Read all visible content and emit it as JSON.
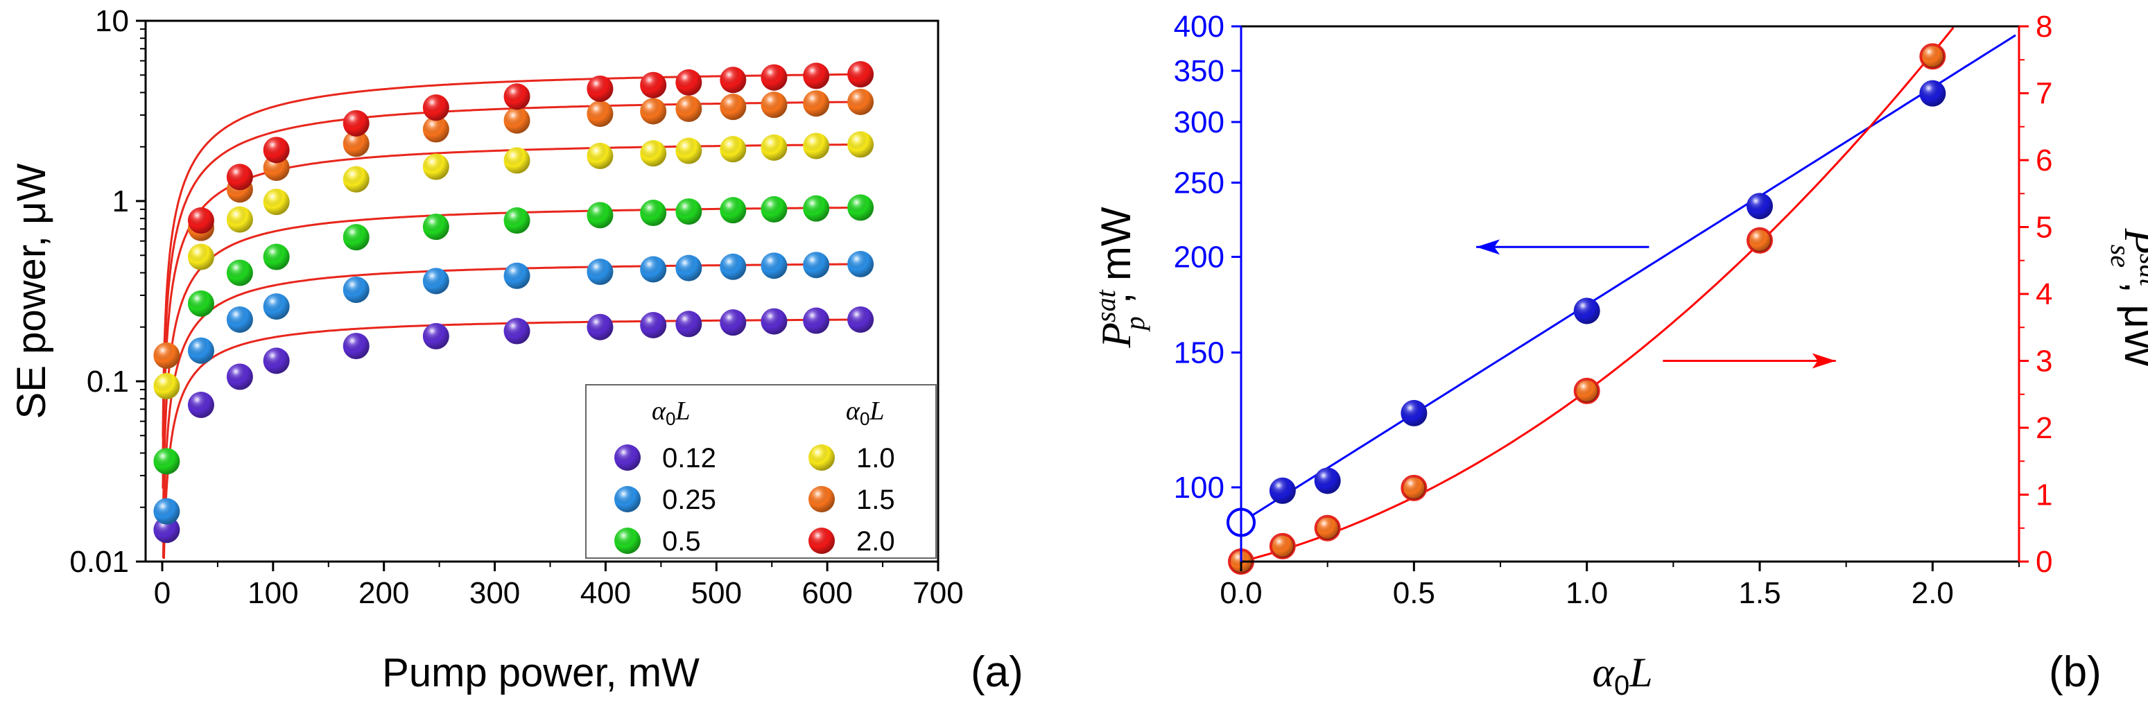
{
  "figure": {
    "colors": {
      "axis": "#000000",
      "blue": "#0000ff",
      "red": "#ff0000",
      "fit_red": "#e8261c",
      "open_marker_fill": "#ffffff"
    },
    "panel_a": {
      "type": "scatter",
      "label": "(a)",
      "xlabel": "Pump power, mW",
      "ylabel": "SE power, μW",
      "xlim": [
        -15,
        700
      ],
      "ylim": [
        0.01,
        10
      ],
      "yscale": "log",
      "xticks": [
        "0",
        "100",
        "200",
        "300",
        "400",
        "500",
        "600",
        "700"
      ],
      "xtick_values": [
        0,
        100,
        200,
        300,
        400,
        500,
        600,
        700
      ],
      "yticks": [
        "0.01",
        "0.1",
        "1",
        "10"
      ],
      "ytick_values": [
        0.01,
        0.1,
        1,
        10
      ],
      "x": [
        4,
        35,
        70,
        103,
        175,
        247,
        320,
        395,
        443,
        475,
        515,
        552,
        590,
        630
      ],
      "series": [
        {
          "name": "0.12",
          "color": "#5a2ccf",
          "values": [
            0.015,
            0.074,
            0.106,
            0.13,
            0.157,
            0.178,
            0.19,
            0.2,
            0.205,
            0.208,
            0.212,
            0.215,
            0.217,
            0.22
          ]
        },
        {
          "name": "0.25",
          "color": "#2a8fe6",
          "values": [
            0.019,
            0.148,
            0.22,
            0.26,
            0.322,
            0.36,
            0.385,
            0.405,
            0.418,
            0.425,
            0.432,
            0.438,
            0.442,
            0.447
          ]
        },
        {
          "name": "0.5",
          "color": "#1fd61f",
          "values": [
            0.036,
            0.27,
            0.4,
            0.49,
            0.63,
            0.72,
            0.78,
            0.835,
            0.86,
            0.875,
            0.89,
            0.9,
            0.91,
            0.92
          ]
        },
        {
          "name": "1.0",
          "color": "#f7e81a",
          "values": [
            0.094,
            0.49,
            0.79,
            0.99,
            1.32,
            1.55,
            1.68,
            1.78,
            1.84,
            1.9,
            1.94,
            1.98,
            2.02,
            2.06
          ]
        },
        {
          "name": "1.5",
          "color": "#f7731c",
          "values": [
            0.139,
            0.71,
            1.16,
            1.53,
            2.08,
            2.5,
            2.8,
            3.05,
            3.15,
            3.25,
            3.33,
            3.42,
            3.48,
            3.55
          ]
        },
        {
          "name": "2.0",
          "color": "#f21818",
          "values": [
            null,
            0.78,
            1.36,
            1.92,
            2.7,
            3.3,
            3.8,
            4.2,
            4.4,
            4.55,
            4.7,
            4.85,
            4.95,
            5.05
          ]
        }
      ],
      "legend": {
        "title": "α0L",
        "position": "bottom-right"
      }
    },
    "panel_b": {
      "type": "scatter",
      "label": "(b)",
      "xlabel": "α0L",
      "ylabel_left": "P_p^sat, mW",
      "ylabel_right": "P_se^sat, μW",
      "xlim": [
        0,
        2.25
      ],
      "xticks": [
        "0.0",
        "0.5",
        "1.0",
        "1.5",
        "2.0"
      ],
      "xtick_values": [
        0,
        0.5,
        1.0,
        1.5,
        2.0
      ],
      "ylim_left": [
        80,
        400
      ],
      "yscale_left": "log",
      "yticks_left": [
        "100",
        "150",
        "200",
        "250",
        "300",
        "350",
        "400"
      ],
      "ytick_left_values": [
        100,
        150,
        200,
        250,
        300,
        350,
        400
      ],
      "ylim_right": [
        0,
        8
      ],
      "yticks_right": [
        "0",
        "1",
        "2",
        "3",
        "4",
        "5",
        "6",
        "7",
        "8"
      ],
      "ytick_right_values": [
        0,
        1,
        2,
        3,
        4,
        5,
        6,
        7,
        8
      ],
      "series_left": {
        "name": "Pp_sat",
        "x": [
          0,
          0.12,
          0.25,
          0.5,
          1.0,
          1.5,
          2.0
        ],
        "values": [
          90,
          99,
          102,
          125,
          170,
          233,
          327
        ],
        "open_first": true
      },
      "series_right": {
        "name": "Pse_sat",
        "x": [
          0,
          0.12,
          0.25,
          0.5,
          1.0,
          1.5,
          2.0
        ],
        "values": [
          0,
          0.23,
          0.5,
          1.1,
          2.55,
          4.8,
          7.55
        ]
      },
      "arrows": [
        {
          "points_to": "left axis",
          "color": "#0000ff",
          "x_from": 1.18,
          "x_to": 0.68,
          "y": 206
        },
        {
          "points_to": "right axis",
          "color": "#ff0000",
          "x_from": 1.22,
          "x_to": 1.72,
          "y_right": 3.0
        }
      ]
    }
  }
}
